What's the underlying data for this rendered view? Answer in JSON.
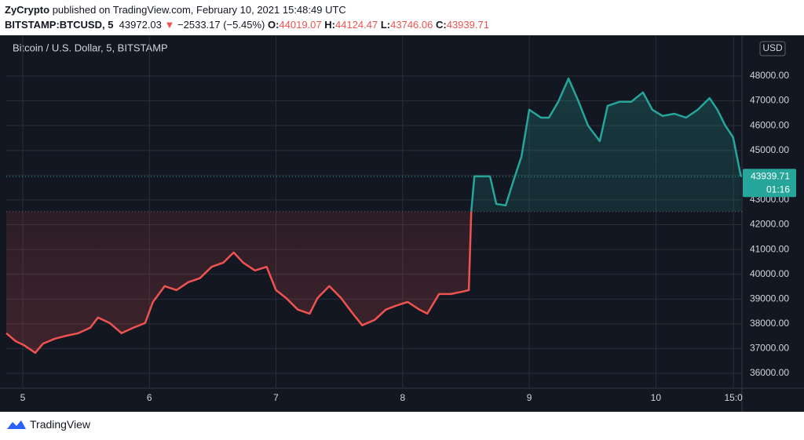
{
  "header": {
    "author": "ZyCrypto",
    "published": "published on TradingView.com, February 10, 2021 15:48:49 UTC",
    "symbol": "BITSTAMP:BTCUSD, 5",
    "price": "43972.03",
    "arrow": "▼",
    "change": "−2533.17 (−5.45%)",
    "o_label": "O:",
    "o": "44019.07",
    "h_label": "H:",
    "h": "44124.47",
    "l_label": "L:",
    "l": "43746.06",
    "c_label": "C:",
    "c": "43939.71"
  },
  "chart_data": {
    "type": "line",
    "title": "Bitcoin / U.S. Dollar, 5, BITSTAMP",
    "currency": "USD",
    "price_label": "43939.71",
    "countdown": "01:16",
    "baseline": 42530,
    "color_above": "#26a69a",
    "color_below": "#ef5350",
    "grid": true,
    "x": [
      4.87,
      4.944,
      5.006,
      5.099,
      5.161,
      5.254,
      5.347,
      5.44,
      5.533,
      5.594,
      5.687,
      5.78,
      5.873,
      5.966,
      6.028,
      6.121,
      6.214,
      6.307,
      6.399,
      6.492,
      6.585,
      6.666,
      6.74,
      6.833,
      6.926,
      7.0,
      7.08,
      7.173,
      7.266,
      7.328,
      7.421,
      7.514,
      7.607,
      7.681,
      7.78,
      7.867,
      7.947,
      8.04,
      8.133,
      8.195,
      8.288,
      8.381,
      8.474,
      8.523,
      8.542,
      8.567,
      8.628,
      8.69,
      8.74,
      8.814,
      8.876,
      8.938,
      9.0,
      9.093,
      9.155,
      9.229,
      9.31,
      9.39,
      9.464,
      9.557,
      9.619,
      9.712,
      9.805,
      9.898,
      9.972,
      10.053,
      10.146,
      10.238,
      10.331,
      10.424,
      10.486,
      10.548,
      10.61,
      10.672
    ],
    "values": [
      37620,
      37300,
      37150,
      36830,
      37200,
      37400,
      37520,
      37620,
      37840,
      38250,
      38030,
      37620,
      37840,
      38030,
      38880,
      39520,
      39360,
      39680,
      39840,
      40300,
      40470,
      40880,
      40470,
      40150,
      40300,
      39360,
      39040,
      38570,
      38410,
      39040,
      39520,
      39040,
      38410,
      37940,
      38160,
      38570,
      38730,
      38880,
      38570,
      38410,
      39200,
      39200,
      39300,
      39360,
      42520,
      43950,
      43950,
      43950,
      42840,
      42780,
      43790,
      44740,
      46640,
      46320,
      46320,
      46960,
      47900,
      46960,
      46000,
      45370,
      46800,
      46960,
      46960,
      47340,
      46640,
      46390,
      46480,
      46320,
      46640,
      47110,
      46640,
      46000,
      45530,
      43939.71
    ],
    "xlim": [
      4.87,
      10.68
    ],
    "xticks": [
      5,
      6,
      7,
      8,
      9,
      10,
      {
        "value": 10.613,
        "label": "15:0"
      }
    ],
    "ylim": [
      35494,
      49487
    ],
    "yticks": [
      {
        "value": 36000,
        "label": "36000.00"
      },
      {
        "value": 37000,
        "label": "37000.00"
      },
      {
        "value": 38000,
        "label": "38000.00"
      },
      {
        "value": 39000,
        "label": "39000.00"
      },
      {
        "value": 40000,
        "label": "40000.00"
      },
      {
        "value": 41000,
        "label": "41000.00"
      },
      {
        "value": 42000,
        "label": "42000.00"
      },
      {
        "value": 43000,
        "label": "43000.00"
      },
      {
        "value": 44000,
        "label": "44000.00"
      },
      {
        "value": 45000,
        "label": "45000.00"
      },
      {
        "value": 46000,
        "label": "46000.00"
      },
      {
        "value": 47000,
        "label": "47000.00"
      },
      {
        "value": 48000,
        "label": "48000.00"
      }
    ]
  },
  "footer": {
    "brand": "TradingView"
  }
}
